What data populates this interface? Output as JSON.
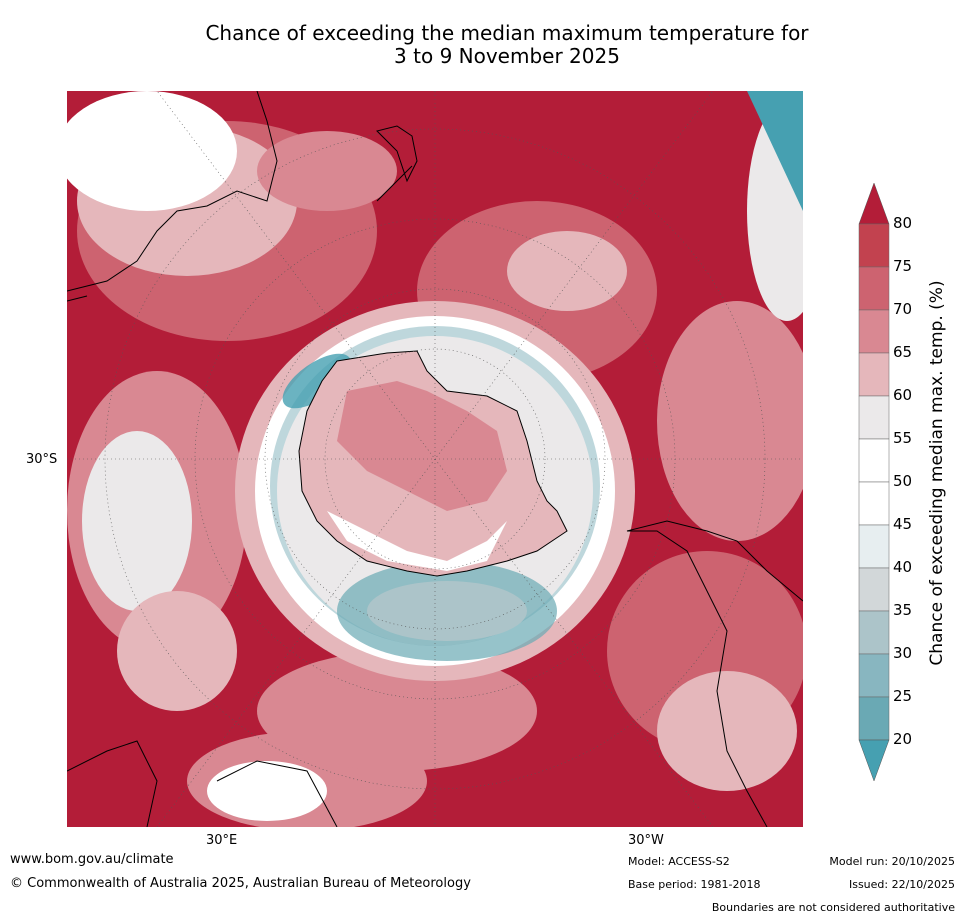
{
  "title_line1": "Chance of exceeding the median maximum temperature for",
  "title_line2": "3 to 9 November 2025",
  "map_labels": {
    "lat": "30°S",
    "lon_east": "30°E",
    "lon_west": "30°W"
  },
  "colorbar": {
    "title": "Chance of exceeding median max. temp. (%)",
    "ticks": [
      "80",
      "75",
      "70",
      "65",
      "60",
      "55",
      "50",
      "45",
      "40",
      "35",
      "30",
      "25",
      "20"
    ],
    "bands_top_to_bottom": [
      "#c2424f",
      "#cd6370",
      "#d98892",
      "#e5b7bb",
      "#ebe9ea",
      "#ffffff",
      "#ffffff",
      "#e7eef0",
      "#d2d7d9",
      "#acc4c9",
      "#88b6c0",
      "#6aa9b4"
    ],
    "over_color": "#b31d38",
    "under_color": "#46a0b1"
  },
  "footer": {
    "website": "www.bom.gov.au/climate",
    "copyright": "© Commonwealth of Australia 2025, Australian Bureau of Meteorology",
    "model": "Model: ACCESS-S2",
    "base_period": "Base period: 1981-2018",
    "model_run": "Model run: 20/10/2025",
    "issued": "Issued: 22/10/2025",
    "disclaimer": "Boundaries are not considered authoritative"
  }
}
